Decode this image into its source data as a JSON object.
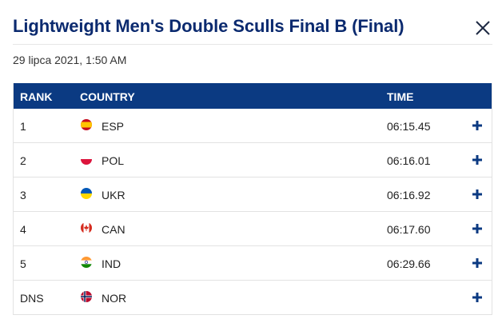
{
  "dialog": {
    "title": "Lightweight Men's Double Sculls Final B (Final)",
    "date": "29 lipca 2021, 1:50 AM",
    "close_icon": "close-icon"
  },
  "table": {
    "headers": {
      "rank": "RANK",
      "country": "COUNTRY",
      "time": "TIME"
    },
    "rows": [
      {
        "rank": "1",
        "country": "ESP",
        "time": "06:15.45",
        "flag": "spain-flag-icon"
      },
      {
        "rank": "2",
        "country": "POL",
        "time": "06:16.01",
        "flag": "poland-flag-icon"
      },
      {
        "rank": "3",
        "country": "UKR",
        "time": "06:16.92",
        "flag": "ukraine-flag-icon"
      },
      {
        "rank": "4",
        "country": "CAN",
        "time": "06:17.60",
        "flag": "canada-flag-icon"
      },
      {
        "rank": "5",
        "country": "IND",
        "time": "06:29.66",
        "flag": "india-flag-icon"
      },
      {
        "rank": "DNS",
        "country": "NOR",
        "time": "",
        "flag": "norway-flag-icon"
      }
    ],
    "expand_icon": "plus-icon"
  },
  "colors": {
    "title": "#0b2a6f",
    "header_bg": "#0b3a82",
    "accent": "#0b3a82"
  }
}
